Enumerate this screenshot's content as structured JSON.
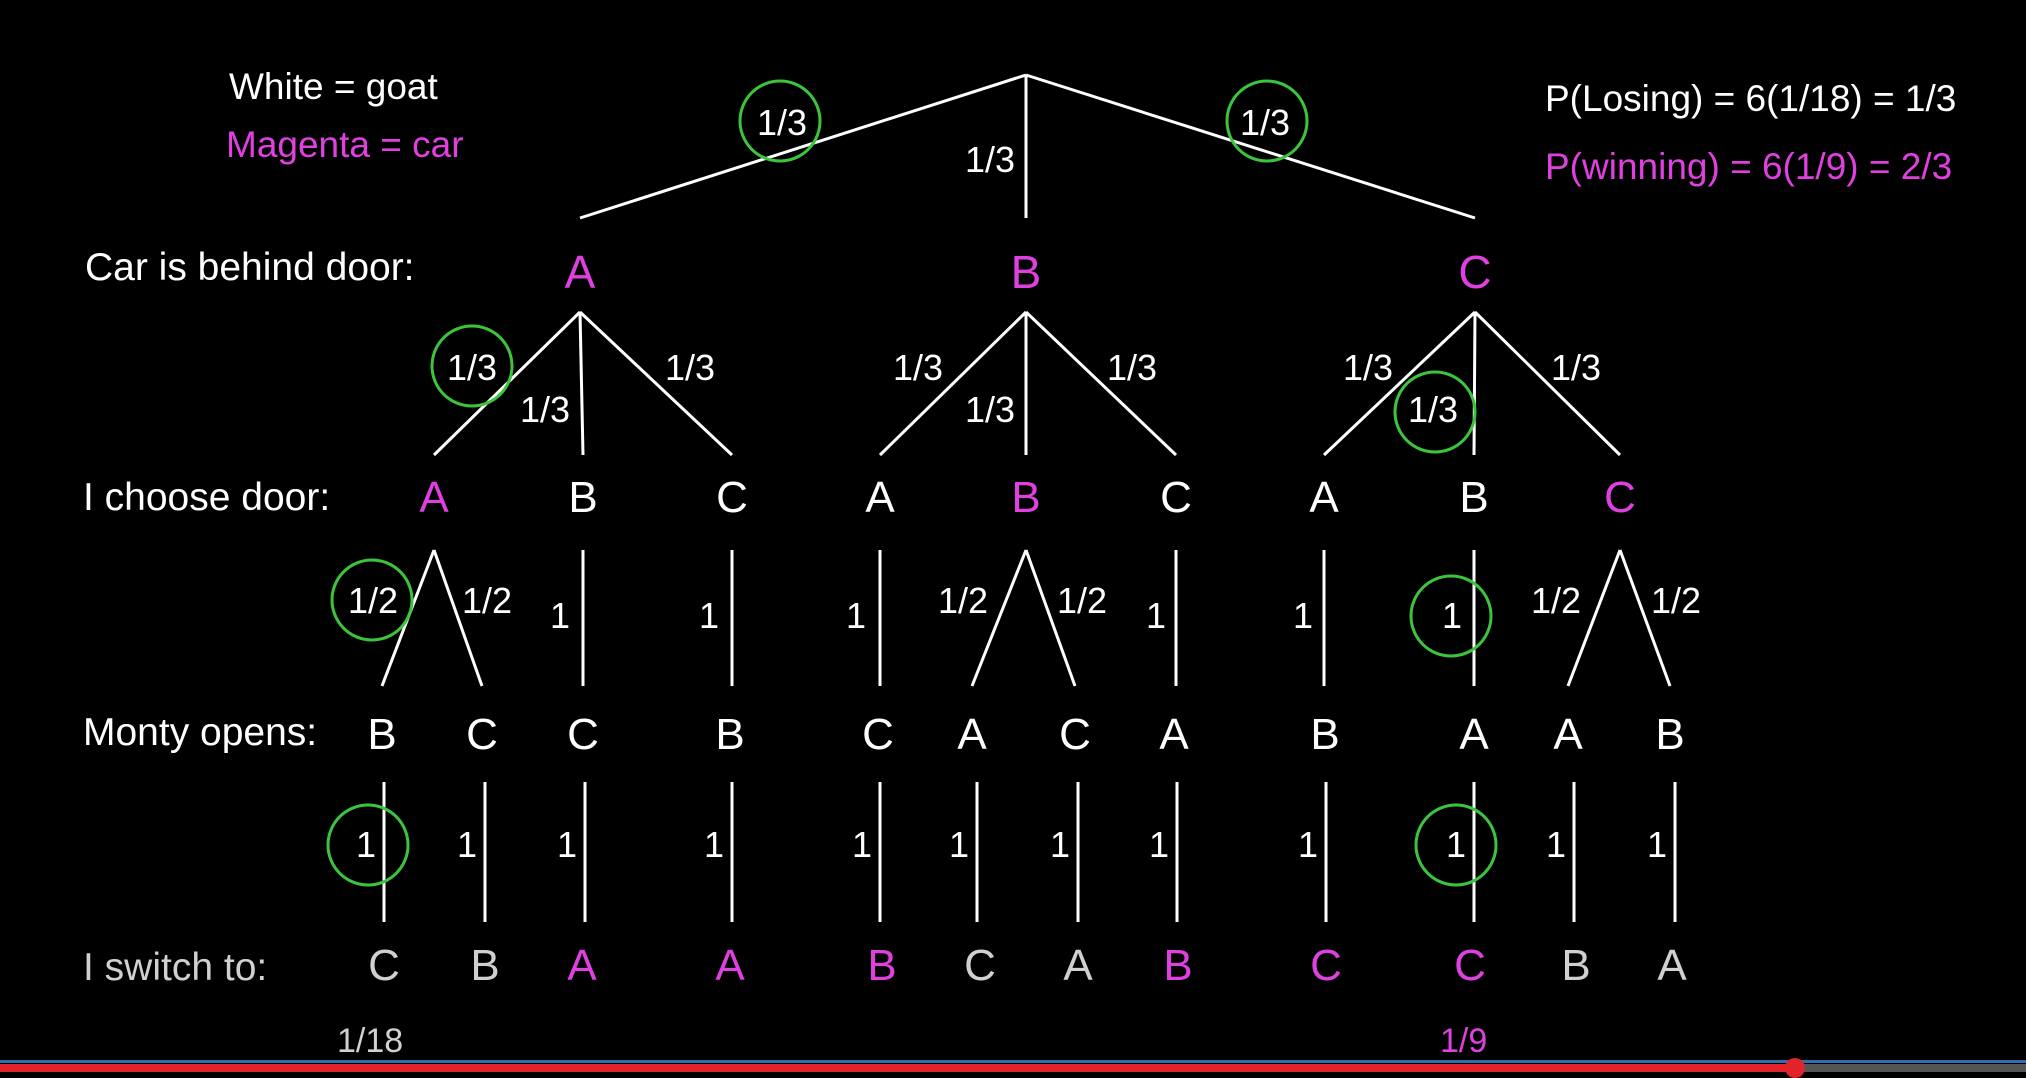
{
  "legend": {
    "goat": "White = goat",
    "car": "Magenta = car"
  },
  "results": {
    "losing": "P(Losing) = 6(1/18) = 1/3",
    "winning": "P(winning) = 6(1/9) = 2/3"
  },
  "row_labels": {
    "car": "Car is behind door:",
    "choose": "I choose door:",
    "monty": "Monty opens:",
    "switch": "I switch to:"
  },
  "level1": {
    "doors": [
      "A",
      "B",
      "C"
    ],
    "probs": [
      "1/3",
      "1/3",
      "1/3"
    ]
  },
  "level2": {
    "doors": [
      "A",
      "B",
      "C",
      "A",
      "B",
      "C",
      "A",
      "B",
      "C"
    ],
    "magenta": [
      true,
      false,
      false,
      false,
      true,
      false,
      false,
      false,
      true
    ],
    "probs": [
      "1/3",
      "1/3",
      "1/3",
      "1/3",
      "1/3",
      "1/3",
      "1/3",
      "1/3",
      "1/3"
    ]
  },
  "level3": {
    "opens": [
      "B",
      "C",
      "C",
      "B",
      "C",
      "A",
      "C",
      "A",
      "B",
      "A",
      "A",
      "B"
    ],
    "probs": [
      "1/2",
      "1/2",
      "1",
      "1",
      "1",
      "1/2",
      "1/2",
      "1",
      "1",
      "1",
      "1/2",
      "1/2"
    ]
  },
  "level4": {
    "switch_to": [
      "C",
      "B",
      "A",
      "A",
      "B",
      "C",
      "A",
      "B",
      "C",
      "C",
      "B",
      "A"
    ],
    "magenta": [
      false,
      false,
      true,
      true,
      true,
      false,
      false,
      true,
      true,
      true,
      false,
      false
    ],
    "probs": [
      "1",
      "1",
      "1",
      "1",
      "1",
      "1",
      "1",
      "1",
      "1",
      "1",
      "1",
      "1"
    ]
  },
  "bottom_values": {
    "lose_path": "1/18",
    "win_path": "1/9"
  },
  "highlight": {
    "color": "#3cc43c"
  },
  "colors": {
    "white": "#ffffff",
    "magenta": "#e040e0",
    "circle": "#3cc43c"
  },
  "video_progress": 0.886
}
